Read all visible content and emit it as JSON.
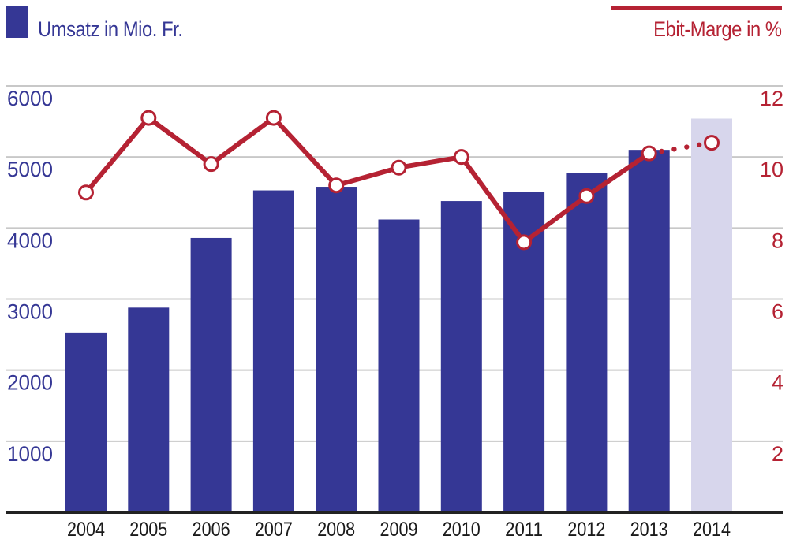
{
  "legend": {
    "bar_label": "Umsatz in Mio. Fr.",
    "line_label": "Ebit-Marge in %"
  },
  "colors": {
    "bar": "#353795",
    "bar_forecast": "#d7d6ec",
    "line": "#b52233",
    "grid": "#c8c8c8",
    "baseline": "#222222"
  },
  "chart_data": {
    "type": "bar",
    "categories": [
      "2004",
      "2005",
      "2006",
      "2007",
      "2008",
      "2009",
      "2010",
      "2011",
      "2012",
      "2013",
      "2014"
    ],
    "series": [
      {
        "name": "Umsatz in Mio. Fr.",
        "type": "bar",
        "axis": "left",
        "values": [
          2530,
          2880,
          3860,
          4530,
          4580,
          4120,
          4380,
          4510,
          4780,
          5100,
          5540
        ],
        "forecast_from_index": 10
      },
      {
        "name": "Ebit-Marge in %",
        "type": "line",
        "axis": "right",
        "values": [
          9.0,
          11.1,
          9.8,
          11.1,
          9.2,
          9.7,
          10.0,
          7.6,
          8.9,
          10.1,
          10.4
        ],
        "dotted_from_index": 9
      }
    ],
    "y_left": {
      "ticks": [
        1000,
        2000,
        3000,
        4000,
        5000,
        6000
      ],
      "range": [
        0,
        6000
      ]
    },
    "y_right": {
      "ticks": [
        2,
        4,
        6,
        8,
        10,
        12
      ],
      "range": [
        0,
        12
      ]
    },
    "grid": true
  }
}
